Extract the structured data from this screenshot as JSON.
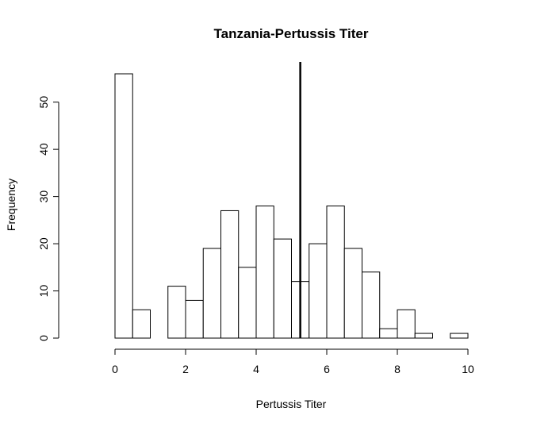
{
  "chart_data": {
    "type": "bar",
    "title": "Tanzania-Pertussis Titer",
    "xlabel": "Pertussis Titer",
    "ylabel": "Frequency",
    "bin_width": 0.5,
    "bins_start": [
      0,
      0.5,
      1,
      1.5,
      2,
      2.5,
      3,
      3.5,
      4,
      4.5,
      5,
      5.5,
      6,
      6.5,
      7,
      7.5,
      8,
      8.5,
      9,
      9.5
    ],
    "values": [
      56,
      6,
      0,
      11,
      8,
      19,
      27,
      15,
      28,
      21,
      12,
      20,
      28,
      19,
      14,
      2,
      6,
      1,
      0,
      1
    ],
    "xlim": [
      0,
      10
    ],
    "ylim": [
      0,
      56
    ],
    "x_ticks": [
      0,
      2,
      4,
      6,
      8,
      10
    ],
    "y_ticks": [
      0,
      10,
      20,
      30,
      40,
      50
    ],
    "reference_line_x": 5.25,
    "colors": {
      "bar_fill": "#ffffff",
      "bar_stroke": "#000000"
    }
  }
}
